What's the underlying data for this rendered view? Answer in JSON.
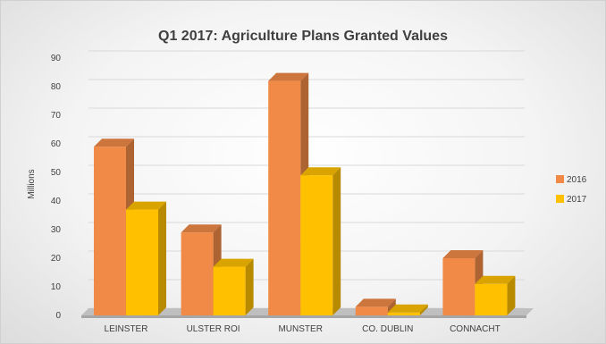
{
  "chart_data": {
    "type": "bar",
    "title": "Q1 2017: Agriculture Plans Granted Values",
    "xlabel": "",
    "ylabel": "Millions",
    "categories": [
      "LEINSTER",
      "ULSTER ROI",
      "MUNSTER",
      "CO. DUBLIN",
      "CONNACHT"
    ],
    "series": [
      {
        "name": "2016",
        "values": [
          59,
          29,
          82,
          3,
          20
        ],
        "color": "#F08A46"
      },
      {
        "name": "2017",
        "values": [
          37,
          17,
          49,
          1,
          11
        ],
        "color": "#FFC000"
      }
    ],
    "ylim": [
      0,
      90
    ],
    "yticks": [
      "0",
      "10",
      "20",
      "30",
      "40",
      "50",
      "60",
      "70",
      "80",
      "90"
    ],
    "grid": true,
    "legend": "right",
    "style": "3d-clustered-column"
  }
}
